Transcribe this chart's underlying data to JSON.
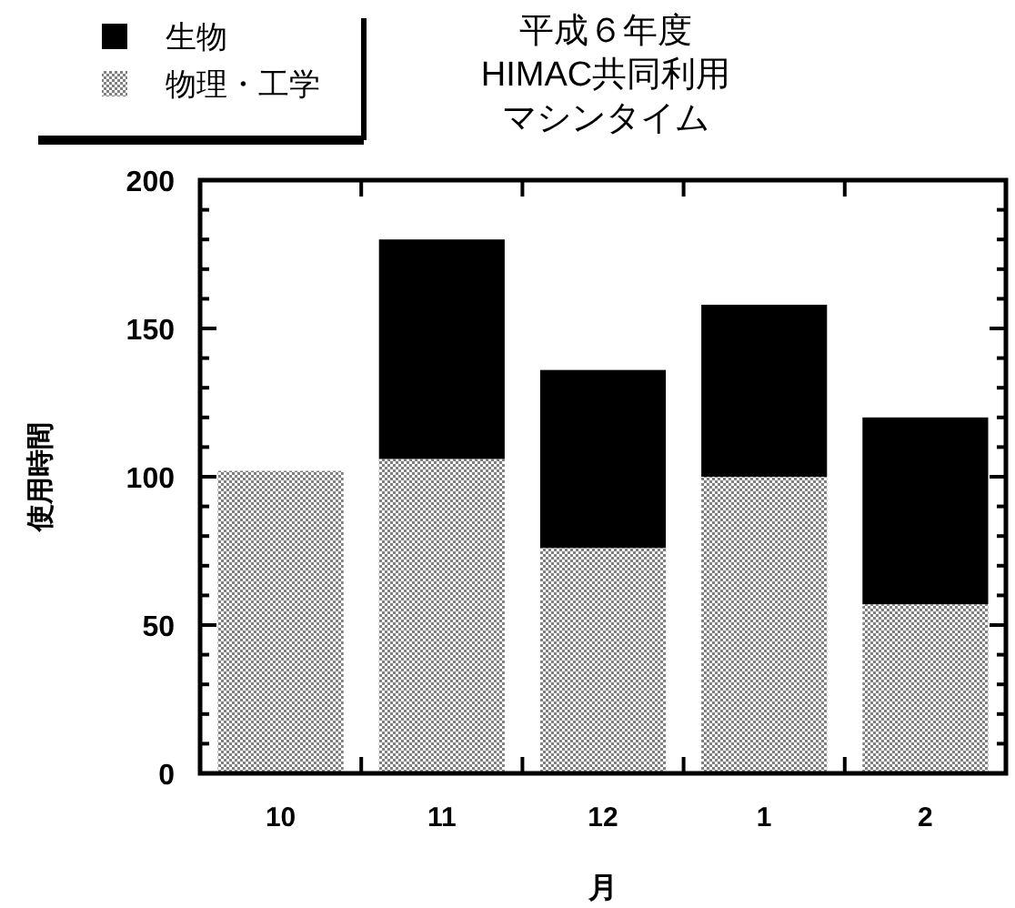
{
  "chart_data": {
    "type": "bar",
    "title": "平成６年度",
    "subtitle": "HIMAC共同利用",
    "annotations": [
      "マシンタイム"
    ],
    "xlabel": "月",
    "ylabel": "使用時間",
    "categories": [
      "10",
      "11",
      "12",
      "1",
      "2"
    ],
    "stacked": true,
    "series": [
      {
        "name": "物理・工学",
        "color": "#808080",
        "values": [
          102,
          106,
          76,
          100,
          57
        ]
      },
      {
        "name": "生物",
        "color": "#000000",
        "values": [
          null,
          74,
          60,
          58,
          63
        ]
      }
    ],
    "ylim": [
      0,
      200
    ],
    "yticks": [
      0,
      {
        "value": 10,
        "label": null
      },
      {
        "value": 20,
        "label": null
      },
      {
        "value": 30,
        "label": null
      },
      {
        "value": 40,
        "label": null
      },
      50,
      {
        "value": 60,
        "label": null
      },
      {
        "value": 70,
        "label": null
      },
      {
        "value": 80,
        "label": null
      },
      {
        "value": 90,
        "label": null
      },
      100,
      {
        "value": 110,
        "label": null
      },
      {
        "value": 120,
        "label": null
      },
      {
        "value": 130,
        "label": null
      },
      {
        "value": 140,
        "label": null
      },
      150,
      {
        "value": 160,
        "label": null
      },
      {
        "value": 170,
        "label": null
      },
      {
        "value": 180,
        "label": null
      },
      {
        "value": 190,
        "label": null
      },
      200
    ],
    "legend": "top left"
  }
}
